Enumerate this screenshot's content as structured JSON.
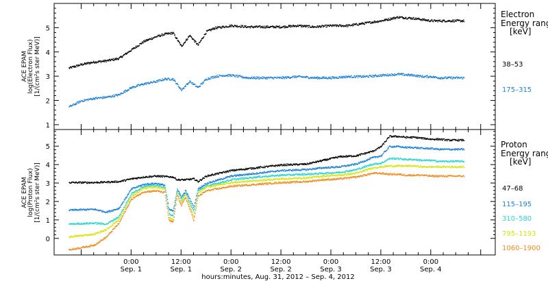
{
  "chart_data": [
    {
      "type": "scatter",
      "panel": "electron",
      "ylabel_lines": [
        "ACE EPAM",
        "log(Electron Flux)",
        "[1/(cm²s ster MeV)]"
      ],
      "ylim": [
        0.8,
        6.0
      ],
      "yticks": [
        "1",
        "2",
        "3",
        "4",
        "5"
      ],
      "legend_title_lines": [
        "Electron",
        "Energy range",
        "[keV]"
      ],
      "series": [
        {
          "name": "38–53",
          "color": "#000000",
          "x": [
            -3,
            0,
            3,
            6,
            9,
            12,
            15,
            18,
            20,
            22,
            24,
            26,
            28,
            30,
            32,
            34,
            36,
            38,
            40,
            44,
            48,
            52,
            56,
            60,
            64,
            68,
            72,
            76,
            80,
            82,
            84,
            86,
            88,
            90,
            92
          ],
          "y": [
            3.35,
            3.5,
            3.6,
            3.65,
            3.75,
            4.1,
            4.45,
            4.65,
            4.75,
            4.8,
            4.25,
            4.7,
            4.3,
            4.85,
            5.0,
            5.05,
            5.1,
            5.08,
            5.05,
            5.05,
            5.05,
            5.1,
            5.05,
            5.1,
            5.1,
            5.2,
            5.3,
            5.45,
            5.4,
            5.35,
            5.3,
            5.3,
            5.3,
            5.3,
            5.3
          ]
        },
        {
          "name": "175–315",
          "color": "#1a7fd6",
          "x": [
            -3,
            0,
            3,
            6,
            9,
            12,
            15,
            18,
            20,
            22,
            24,
            26,
            28,
            30,
            32,
            34,
            36,
            38,
            40,
            44,
            48,
            52,
            56,
            60,
            64,
            68,
            72,
            76,
            80,
            82,
            84,
            86,
            88,
            90,
            92
          ],
          "y": [
            1.75,
            2.0,
            2.1,
            2.15,
            2.25,
            2.55,
            2.7,
            2.8,
            2.9,
            2.9,
            2.45,
            2.8,
            2.55,
            2.9,
            3.0,
            3.05,
            3.05,
            3.0,
            2.95,
            2.95,
            2.95,
            3.0,
            2.95,
            2.95,
            3.0,
            3.0,
            3.05,
            3.1,
            3.05,
            3.0,
            3.0,
            2.95,
            2.95,
            2.95,
            2.95
          ]
        }
      ]
    },
    {
      "type": "scatter",
      "panel": "proton",
      "ylabel_lines": [
        "ACE EPAM",
        "log(Proton Flux)",
        "[1/(cm²s ster MeV)]"
      ],
      "ylim": [
        -0.9,
        5.9
      ],
      "yticks": [
        "0",
        "1",
        "2",
        "3",
        "4",
        "5"
      ],
      "legend_title_lines": [
        "Proton",
        "Energy range",
        "[keV]"
      ],
      "series": [
        {
          "name": "47–68",
          "color": "#000000",
          "x": [
            -3,
            3,
            9,
            12,
            15,
            18,
            22,
            23,
            25,
            27,
            28,
            30,
            36,
            42,
            48,
            54,
            58,
            62,
            66,
            70,
            72,
            74,
            76,
            78,
            80,
            82,
            84,
            86,
            88,
            90,
            92
          ],
          "y": [
            3.05,
            3.05,
            3.1,
            3.25,
            3.35,
            3.4,
            3.35,
            3.2,
            3.2,
            3.25,
            3.1,
            3.4,
            3.7,
            3.85,
            4.0,
            4.05,
            4.25,
            4.45,
            4.5,
            4.75,
            5.0,
            5.55,
            5.55,
            5.5,
            5.5,
            5.45,
            5.4,
            5.4,
            5.35,
            5.35,
            5.35
          ]
        },
        {
          "name": "115–195",
          "color": "#1a7fd6",
          "x": [
            -3,
            3,
            6,
            9,
            12,
            15,
            18,
            20,
            21,
            22,
            23,
            24,
            25,
            27,
            28,
            30,
            36,
            42,
            48,
            54,
            58,
            62,
            66,
            70,
            72,
            74,
            76,
            78,
            80,
            82,
            84,
            86,
            88,
            90,
            92
          ],
          "y": [
            1.55,
            1.6,
            1.45,
            1.65,
            2.7,
            2.95,
            3.0,
            2.9,
            1.6,
            1.5,
            2.7,
            2.25,
            2.6,
            1.7,
            2.7,
            3.0,
            3.4,
            3.55,
            3.7,
            3.75,
            3.85,
            3.9,
            4.05,
            4.4,
            4.5,
            5.0,
            5.0,
            4.95,
            4.95,
            4.9,
            4.9,
            4.85,
            4.85,
            4.85,
            4.85
          ]
        },
        {
          "name": "310–580",
          "color": "#28d4d0",
          "x": [
            -3,
            3,
            6,
            9,
            12,
            15,
            18,
            20,
            21,
            22,
            23,
            24,
            25,
            27,
            28,
            30,
            36,
            42,
            48,
            54,
            58,
            62,
            66,
            70,
            72,
            74,
            76,
            78,
            80,
            82,
            84,
            86,
            88,
            90,
            92
          ],
          "y": [
            0.8,
            0.85,
            0.8,
            1.2,
            2.45,
            2.85,
            2.9,
            2.8,
            1.35,
            1.25,
            2.6,
            2.1,
            2.5,
            1.45,
            2.6,
            2.85,
            3.2,
            3.35,
            3.45,
            3.5,
            3.55,
            3.6,
            3.75,
            4.05,
            4.1,
            4.35,
            4.35,
            4.3,
            4.3,
            4.25,
            4.25,
            4.2,
            4.2,
            4.2,
            4.2
          ]
        },
        {
          "name": "795–1193",
          "color": "#d4e60a",
          "x": [
            -3,
            3,
            6,
            9,
            12,
            15,
            18,
            20,
            21,
            22,
            23,
            24,
            25,
            27,
            28,
            30,
            36,
            42,
            48,
            54,
            58,
            62,
            66,
            70,
            72,
            74,
            76,
            78,
            80,
            82,
            84,
            86,
            88,
            90,
            92
          ],
          "y": [
            0.1,
            0.25,
            0.5,
            1.05,
            2.3,
            2.75,
            2.8,
            2.7,
            1.15,
            1.05,
            2.5,
            1.95,
            2.4,
            1.2,
            2.5,
            2.8,
            3.05,
            3.15,
            3.25,
            3.3,
            3.4,
            3.45,
            3.55,
            3.85,
            3.9,
            3.95,
            3.95,
            3.95,
            3.95,
            3.9,
            3.9,
            3.9,
            3.9,
            3.9,
            3.9
          ]
        },
        {
          "name": "1060–1900",
          "color": "#f08a1a",
          "x": [
            -3,
            3,
            6,
            9,
            12,
            15,
            18,
            20,
            21,
            22,
            23,
            24,
            25,
            27,
            28,
            30,
            36,
            42,
            48,
            54,
            58,
            62,
            66,
            70,
            72,
            74,
            76,
            78,
            80,
            82,
            84,
            86,
            88,
            90,
            92
          ],
          "y": [
            -0.6,
            -0.35,
            0.1,
            0.85,
            2.15,
            2.55,
            2.6,
            2.5,
            1.0,
            0.9,
            2.35,
            1.8,
            2.25,
            1.0,
            2.3,
            2.6,
            2.85,
            2.95,
            3.05,
            3.1,
            3.2,
            3.25,
            3.35,
            3.55,
            3.55,
            3.5,
            3.5,
            3.45,
            3.45,
            3.45,
            3.4,
            3.4,
            3.4,
            3.4,
            3.4
          ]
        }
      ]
    }
  ],
  "x_axis": {
    "unit_note": "hours since 2012-08-31 12:00",
    "xlim": [
      -6.5,
      99.5
    ],
    "ticks": [
      {
        "x": 12,
        "time": "0:00",
        "day": "Sep. 1"
      },
      {
        "x": 24,
        "time": "12:00",
        "day": "Sep. 1"
      },
      {
        "x": 36,
        "time": "0:00",
        "day": "Sep. 2"
      },
      {
        "x": 48,
        "time": "12:00",
        "day": "Sep. 2"
      },
      {
        "x": 60,
        "time": "0:00",
        "day": "Sep. 3"
      },
      {
        "x": 72,
        "time": "12:00",
        "day": "Sep. 3"
      },
      {
        "x": 84,
        "time": "0:00",
        "day": "Sep. 4"
      }
    ],
    "label": "hours:minutes, Aug. 31, 2012 – Sep. 4, 2012"
  }
}
